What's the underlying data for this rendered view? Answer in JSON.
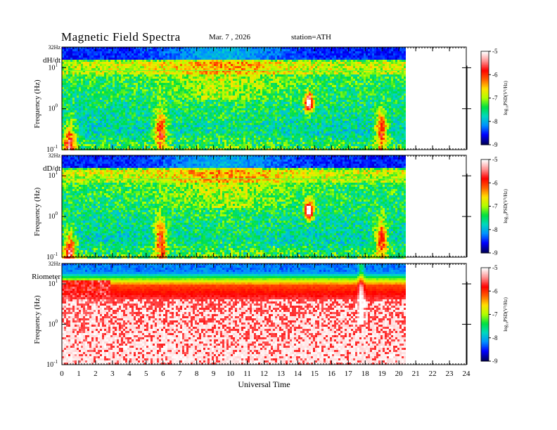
{
  "header": {
    "title": "Magnetic  Field  Spectra",
    "date": "Mar. 7  , 2026",
    "station": "station=ATH"
  },
  "colors": {
    "scale": [
      "#000060",
      "#0000ff",
      "#0090ff",
      "#00d8c0",
      "#00e040",
      "#b0ff00",
      "#ffe000",
      "#ff6000",
      "#ff0000",
      "#ff9090",
      "#ffffff"
    ]
  },
  "chart_data": [
    {
      "type": "heatmap",
      "panel_label": "dH/dt",
      "ylabel": "Frequency  (Hz)",
      "y_top_label": "32Hz",
      "y_ticks": [
        {
          "base": "10",
          "exp": "1"
        },
        {
          "base": "10",
          "exp": "0"
        },
        {
          "base": "10",
          "exp": "-1"
        }
      ],
      "ylim": [
        0.1,
        32
      ],
      "y_scale": "log",
      "xlim": [
        0,
        24
      ],
      "data_extent_hours": [
        0,
        20.4
      ],
      "colorbar": {
        "label": "log₁₀PSD(V²/Hz)",
        "range": [
          -9,
          -5
        ],
        "ticks": [
          "-5",
          "-6",
          "-7",
          "-8",
          "-9"
        ]
      },
      "features": [
        {
          "t": 0.4,
          "f": 0.15,
          "intensity": "high",
          "note": "red low-frequency patch"
        },
        {
          "t": 5.8,
          "f": 0.3,
          "intensity": "high",
          "note": "vertical burst"
        },
        {
          "t": 14.6,
          "f": 1.5,
          "intensity": "very high",
          "note": "white-red blob"
        },
        {
          "t": 18.9,
          "f": 0.3,
          "intensity": "high",
          "note": "vertical burst"
        }
      ]
    },
    {
      "type": "heatmap",
      "panel_label": "dD/dt",
      "ylabel": "Frequency  (Hz)",
      "y_top_label": "32Hz",
      "y_ticks": [
        {
          "base": "10",
          "exp": "1"
        },
        {
          "base": "10",
          "exp": "0"
        },
        {
          "base": "10",
          "exp": "-1"
        }
      ],
      "ylim": [
        0.1,
        32
      ],
      "y_scale": "log",
      "xlim": [
        0,
        24
      ],
      "data_extent_hours": [
        0,
        20.4
      ],
      "colorbar": {
        "label": "log₁₀PSD(V²/Hz)",
        "range": [
          -9,
          -5
        ],
        "ticks": [
          "-5",
          "-6",
          "-7",
          "-8",
          "-9"
        ]
      },
      "features": [
        {
          "t": 0.4,
          "f": 0.15,
          "intensity": "high",
          "note": "red low-frequency patch"
        },
        {
          "t": 5.8,
          "f": 0.3,
          "intensity": "high",
          "note": "vertical burst"
        },
        {
          "t": 14.6,
          "f": 1.5,
          "intensity": "very high",
          "note": "white-red blob"
        },
        {
          "t": 18.9,
          "f": 0.3,
          "intensity": "high",
          "note": "vertical burst"
        }
      ]
    },
    {
      "type": "heatmap",
      "panel_label": "Riometer",
      "ylabel": "Frequency  (Hz)",
      "y_top_label": "32Hz",
      "y_ticks": [
        {
          "base": "10",
          "exp": "1"
        },
        {
          "base": "10",
          "exp": "0"
        },
        {
          "base": "10",
          "exp": "-1"
        }
      ],
      "ylim": [
        0.1,
        32
      ],
      "y_scale": "log",
      "xlim": [
        0,
        24
      ],
      "data_extent_hours": [
        0,
        20.4
      ],
      "colorbar": {
        "label": "log₁₀PSD(V²/Hz)",
        "range": [
          -9,
          -5
        ],
        "ticks": [
          "-5",
          "-6",
          "-7",
          "-8",
          "-9"
        ]
      },
      "features": [
        {
          "t": 17.7,
          "f": 3,
          "intensity": "high",
          "note": "streak across band"
        }
      ],
      "xlabel": "Universal Time",
      "x_ticks": [
        "0",
        "1",
        "2",
        "3",
        "4",
        "5",
        "6",
        "7",
        "8",
        "9",
        "10",
        "11",
        "12",
        "13",
        "14",
        "15",
        "16",
        "17",
        "18",
        "19",
        "20",
        "21",
        "22",
        "23",
        "24"
      ]
    }
  ]
}
